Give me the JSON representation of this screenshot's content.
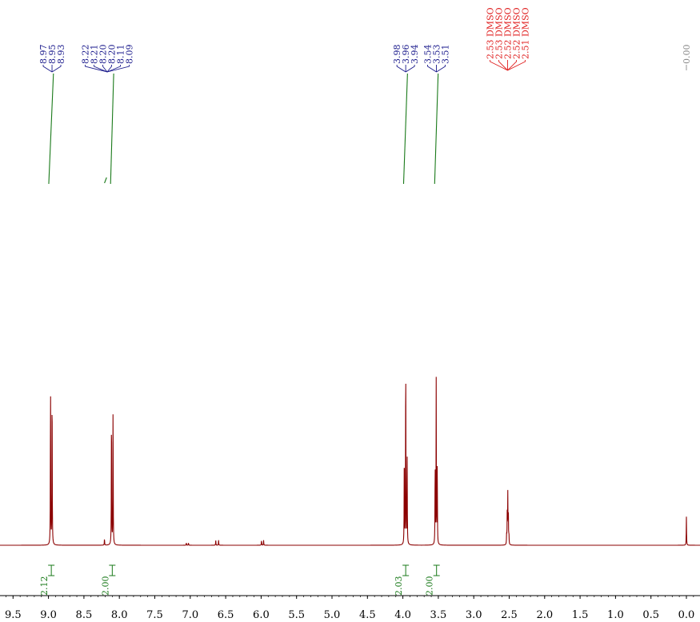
{
  "chart_data": {
    "type": "line",
    "title": "",
    "xlabel": "",
    "ylabel": "",
    "xlim": [
      9.5,
      -0.17
    ],
    "x_reversed": true,
    "x_ticks": [
      "9.5",
      "9.0",
      "8.5",
      "8.0",
      "7.5",
      "7.0",
      "6.5",
      "6.0",
      "5.5",
      "5.0",
      "4.5",
      "4.0",
      "3.5",
      "3.0",
      "2.5",
      "2.0",
      "1.5",
      "1.0",
      "0.5",
      "0.0"
    ],
    "x_tick_values": [
      9.5,
      9.0,
      8.5,
      8.0,
      7.5,
      7.0,
      6.5,
      6.0,
      5.5,
      5.0,
      4.5,
      4.0,
      3.5,
      3.0,
      2.5,
      2.0,
      1.5,
      1.0,
      0.5,
      0.0
    ],
    "spectrum_color": "#8b0000",
    "colors": {
      "peak_label": "#1a1a8c",
      "solvent_label": "#e02020",
      "integral": "#1a7a1a"
    },
    "peak_groups": [
      {
        "color": "peak_label",
        "labels": [
          "8.97",
          "8.95",
          "8.93"
        ],
        "values": [
          8.97,
          8.95,
          8.93
        ]
      },
      {
        "color": "peak_label",
        "labels": [
          "8.22",
          "8.21",
          "8.20",
          "8.20",
          "8.11",
          "8.09"
        ],
        "values": [
          8.22,
          8.21,
          8.2,
          8.2,
          8.11,
          8.09
        ]
      },
      {
        "color": "peak_label",
        "labels": [
          "3.98",
          "3.96",
          "3.94"
        ],
        "values": [
          3.98,
          3.96,
          3.94
        ]
      },
      {
        "color": "peak_label",
        "labels": [
          "3.54",
          "3.53",
          "3.51"
        ],
        "values": [
          3.54,
          3.53,
          3.51
        ]
      },
      {
        "color": "solvent_label",
        "labels": [
          "2.53 DMSO",
          "2.53 DMSO",
          "2.52 DMSO",
          "2.52 DMSO",
          "2.51 DMSO"
        ],
        "values": [
          2.53,
          2.53,
          2.52,
          2.52,
          2.51
        ]
      },
      {
        "color": "peak_label_gray",
        "labels": [
          "0.00"
        ],
        "values": [
          0.0
        ]
      }
    ],
    "peaks": [
      {
        "ppm": 8.96,
        "height": 1.0,
        "shape": "doublet",
        "split": 0.022
      },
      {
        "ppm": 8.1,
        "height": 0.84,
        "shape": "doublet",
        "split": 0.022
      },
      {
        "ppm": 8.21,
        "height": 0.04,
        "shape": "singlet"
      },
      {
        "ppm": 3.96,
        "height": 1.18,
        "shape": "triplet",
        "split": 0.02
      },
      {
        "ppm": 3.53,
        "height": 0.98,
        "shape": "triplet",
        "split": 0.015
      },
      {
        "ppm": 2.52,
        "height": 0.3,
        "shape": "quintet",
        "split": 0.008
      },
      {
        "ppm": 0.0,
        "height": 0.17,
        "shape": "singlet"
      },
      {
        "ppm": 7.04,
        "height": 0.015,
        "shape": "doublet",
        "split": 0.03
      },
      {
        "ppm": 6.62,
        "height": 0.03,
        "shape": "doublet",
        "split": 0.04
      },
      {
        "ppm": 5.98,
        "height": 0.03,
        "shape": "doublet",
        "split": 0.03
      }
    ],
    "integrals": [
      {
        "from": 9.02,
        "to": 8.9,
        "value": "2.12"
      },
      {
        "from": 8.14,
        "to": 8.06,
        "value": "2.00"
      },
      {
        "from": 4.01,
        "to": 3.91,
        "value": "2.03"
      },
      {
        "from": 3.57,
        "to": 3.48,
        "value": "2.00"
      }
    ]
  }
}
